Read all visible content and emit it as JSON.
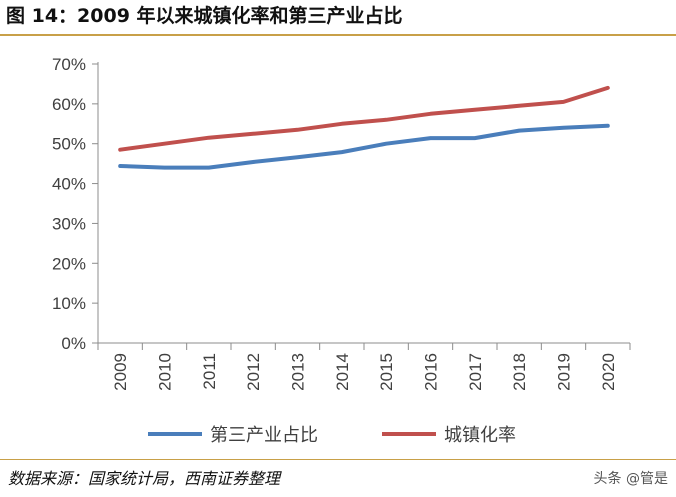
{
  "figure": {
    "title": "图 14：2009 年以来城镇化率和第三产业占比",
    "source": "数据来源：国家统计局，西南证券整理",
    "watermark": "头条 @管是"
  },
  "chart_data": {
    "type": "line",
    "title": "2009 年以来城镇化率和第三产业占比",
    "xlabel": "",
    "ylabel": "",
    "categories": [
      "2009",
      "2010",
      "2011",
      "2012",
      "2013",
      "2014",
      "2015",
      "2016",
      "2017",
      "2018",
      "2019",
      "2020"
    ],
    "ylim": [
      0,
      70
    ],
    "yticks": [
      0,
      10,
      20,
      30,
      40,
      50,
      60,
      70
    ],
    "ytick_labels": [
      "0%",
      "10%",
      "20%",
      "30%",
      "40%",
      "50%",
      "60%",
      "70%"
    ],
    "grid": false,
    "legend_position": "bottom",
    "series": [
      {
        "name": "第三产业占比",
        "color": "#4a7ebb",
        "values": [
          44.4,
          44.0,
          44.0,
          45.4,
          46.6,
          47.9,
          50.0,
          51.4,
          51.4,
          53.3,
          54.0,
          54.5
        ]
      },
      {
        "name": "城镇化率",
        "color": "#c0504d",
        "values": [
          48.5,
          50.0,
          51.5,
          52.5,
          53.5,
          55.0,
          56.0,
          57.5,
          58.5,
          59.5,
          60.5,
          64.0
        ]
      }
    ]
  }
}
